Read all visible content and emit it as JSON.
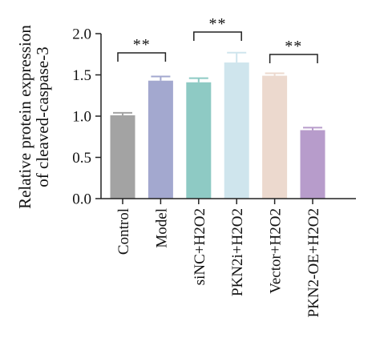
{
  "chart_data": {
    "type": "bar",
    "ylabel_lines": [
      "Relative protein expression",
      "of cleaved-caspase-3"
    ],
    "xlabel": "",
    "ylim": [
      0,
      2.0
    ],
    "yticks": [
      {
        "value": 0.0,
        "label": "0.0"
      },
      {
        "value": 0.5,
        "label": "0.5"
      },
      {
        "value": 1.0,
        "label": "1.0"
      },
      {
        "value": 1.5,
        "label": "1.5"
      },
      {
        "value": 2.0,
        "label": "2.0"
      }
    ],
    "categories": [
      "Control",
      "Model",
      "siNC+H2O2",
      "PKN2i+H2O2",
      "Vector+H2O2",
      "PKN2-OE+H2O2"
    ],
    "values": [
      1.01,
      1.43,
      1.41,
      1.65,
      1.49,
      0.83
    ],
    "errors": [
      0.03,
      0.05,
      0.05,
      0.12,
      0.03,
      0.03
    ],
    "colors": [
      "#a3a3a3",
      "#a3a8cf",
      "#8ecac4",
      "#cfe5ed",
      "#ecd9ce",
      "#b79ccb"
    ],
    "significance": [
      {
        "from": 0,
        "to": 1,
        "label": "**"
      },
      {
        "from": 2,
        "to": 3,
        "label": "**"
      },
      {
        "from": 4,
        "to": 5,
        "label": "**"
      }
    ],
    "grid": false,
    "legend": "none"
  }
}
